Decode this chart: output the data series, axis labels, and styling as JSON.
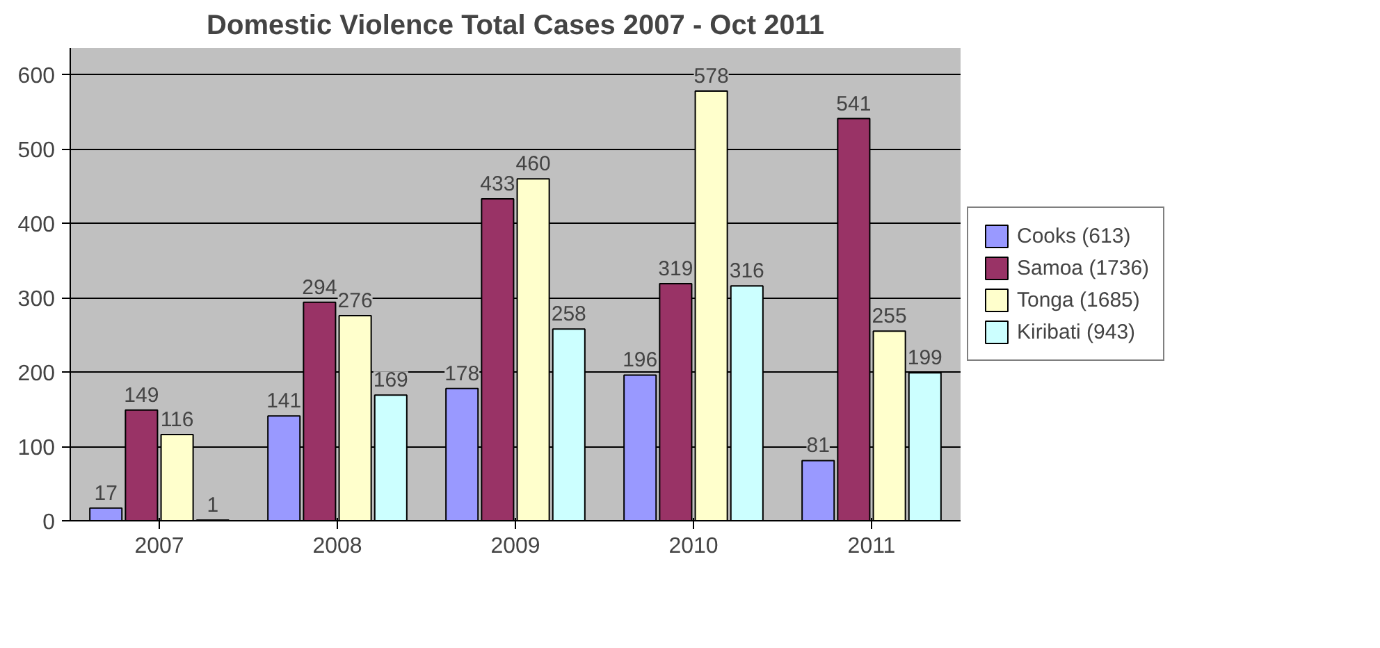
{
  "chart_data": {
    "type": "bar",
    "title": "Domestic Violence Total Cases 2007 - Oct 2011",
    "categories": [
      "2007",
      "2008",
      "2009",
      "2010",
      "2011"
    ],
    "series": [
      {
        "name": "Cooks (613)",
        "color": "#9999ff",
        "values": [
          17,
          141,
          178,
          196,
          81
        ]
      },
      {
        "name": "Samoa (1736)",
        "color": "#993366",
        "values": [
          149,
          294,
          433,
          319,
          541
        ]
      },
      {
        "name": "Tonga (1685)",
        "color": "#ffffcc",
        "values": [
          116,
          276,
          460,
          578,
          255
        ]
      },
      {
        "name": "Kiribati (943)",
        "color": "#ccffff",
        "values": [
          1,
          169,
          258,
          316,
          199
        ]
      }
    ],
    "ylim": [
      0,
      600
    ],
    "yticks": [
      0,
      100,
      200,
      300,
      400,
      500,
      600
    ],
    "grid": "y",
    "legend": "right",
    "data_labels": true
  }
}
